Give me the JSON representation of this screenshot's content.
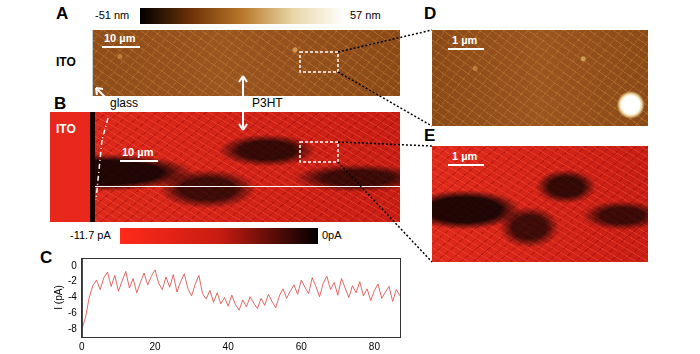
{
  "panels": [
    {
      "label": "A",
      "texts": [
        "ITO"
      ],
      "scale_bar": "10 µm",
      "colorbar": {
        "labels": [
          "-51 nm",
          "57 nm"
        ],
        "colors": [
          "#000000",
          "#6e3208",
          "#b9782a",
          "#e8d8a8",
          "#ffffff"
        ]
      }
    },
    {
      "label": "B",
      "texts": [
        "ITO"
      ],
      "scale_bar": "10 µm",
      "colorbar": {
        "labels": [
          "-11.7 pA",
          "0pA"
        ],
        "colors": [
          "#ff2a1a",
          "#c81c12",
          "#000000"
        ]
      }
    },
    {
      "label": "D",
      "scale_bar": "1 µm"
    },
    {
      "label": "E",
      "scale_bar": "1 µm"
    }
  ],
  "annotations": [
    "glass",
    "P3HT"
  ],
  "chart_data": {
    "title": "C",
    "type": "line",
    "ylabel": "I (pA)",
    "color": "#d9443f",
    "x": [
      0,
      1,
      2,
      3,
      4,
      5,
      6,
      7,
      8,
      9,
      10,
      11,
      12,
      13,
      14,
      15,
      16,
      17,
      18,
      19,
      20,
      21,
      22,
      23,
      24,
      25,
      26,
      27,
      28,
      29,
      30,
      31,
      32,
      33,
      34,
      35,
      36,
      37,
      38,
      39,
      40,
      41,
      42,
      43,
      44,
      45,
      46,
      47,
      48,
      49,
      50,
      51,
      52,
      53,
      54,
      55,
      56,
      57,
      58,
      59,
      60,
      61,
      62,
      63,
      64,
      65,
      66,
      67,
      68,
      69,
      70,
      71,
      72,
      73,
      74,
      75,
      76,
      77,
      78,
      79,
      80,
      81,
      82,
      83,
      84,
      85,
      86,
      87
    ],
    "values": [
      -8,
      -6.5,
      -4,
      -2.5,
      -1.8,
      -3,
      -1.5,
      -0.8,
      -2.6,
      -1.2,
      -3.2,
      -1.9,
      -0.7,
      -2.8,
      -1.6,
      -3.4,
      -2.1,
      -0.9,
      -2.4,
      -1.3,
      -0.5,
      -2.2,
      -3.0,
      -1.4,
      -2.7,
      -1.1,
      -3.3,
      -2.0,
      -1.0,
      -2.9,
      -3.8,
      -2.3,
      -1.2,
      -3.5,
      -4.2,
      -3.1,
      -4.6,
      -3.4,
      -4.8,
      -4.0,
      -5.1,
      -3.7,
      -4.9,
      -5.6,
      -4.3,
      -5.2,
      -3.9,
      -4.7,
      -5.4,
      -4.1,
      -5.0,
      -3.6,
      -4.5,
      -5.3,
      -3.8,
      -2.9,
      -4.1,
      -3.2,
      -2.4,
      -3.6,
      -1.8,
      -2.7,
      -3.5,
      -1.5,
      -2.6,
      -3.9,
      -2.2,
      -1.3,
      -3.0,
      -2.1,
      -3.7,
      -1.6,
      -2.8,
      -4.0,
      -2.5,
      -3.4,
      -2.0,
      -3.8,
      -2.9,
      -4.4,
      -3.1,
      -2.3,
      -4.1,
      -3.3,
      -2.6,
      -4.5,
      -3.0,
      -3.8
    ],
    "xlim": [
      0,
      87
    ],
    "xticks": [
      0,
      20,
      40,
      60,
      80
    ],
    "ylim": [
      -9,
      1
    ],
    "yticks": [
      -8,
      -6,
      -4,
      -2,
      0
    ],
    "grid": false
  }
}
